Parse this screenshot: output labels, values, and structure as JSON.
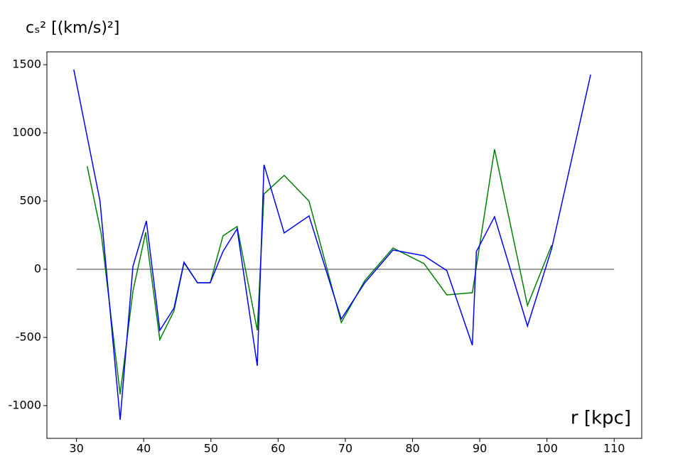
{
  "chart_data": {
    "type": "line",
    "ylabel": "cₛ² [(km/s)²]",
    "xlabel": "r [kpc]",
    "xlim": [
      25.6,
      114.1
    ],
    "ylim": [
      -1240,
      1594
    ],
    "xticks": [
      30,
      40,
      50,
      60,
      70,
      80,
      90,
      100,
      110
    ],
    "yticks": [
      -1000,
      -500,
      0,
      500,
      1000,
      1500
    ],
    "series": [
      {
        "color": "#808080",
        "x": [
          30,
          110
        ],
        "values": [
          0,
          0
        ]
      },
      {
        "color": "#008000",
        "x": [
          31.6,
          33.7,
          36.5,
          38.4,
          40.3,
          42.4,
          44.5,
          46.0,
          48.0,
          49.9,
          51.8,
          53.9,
          56.9,
          57.9,
          60.9,
          64.6,
          69.4,
          72.9,
          77.1,
          81.7,
          85.1,
          88.9,
          92.2,
          97.1,
          100.7
        ],
        "values": [
          755,
          255,
          -917,
          -161,
          271,
          -516,
          -307,
          47,
          -99,
          -99,
          245,
          313,
          -448,
          552,
          688,
          500,
          -391,
          -83,
          156,
          42,
          -188,
          -172,
          880,
          -266,
          177
        ]
      },
      {
        "color": "#0000ff",
        "x": [
          29.6,
          33.5,
          36.5,
          38.4,
          40.4,
          42.4,
          44.5,
          46.0,
          48.0,
          49.9,
          51.8,
          53.9,
          56.9,
          57.9,
          60.9,
          64.6,
          69.4,
          72.9,
          77.1,
          81.7,
          85.1,
          88.9,
          89.5,
          92.2,
          97.1,
          100.7,
          106.5
        ],
        "values": [
          1464,
          500,
          -1104,
          21,
          354,
          -448,
          -286,
          52,
          -99,
          -99,
          130,
          297,
          -708,
          766,
          266,
          391,
          -365,
          -99,
          141,
          99,
          -10,
          -557,
          130,
          385,
          -417,
          151,
          1427
        ]
      }
    ]
  }
}
